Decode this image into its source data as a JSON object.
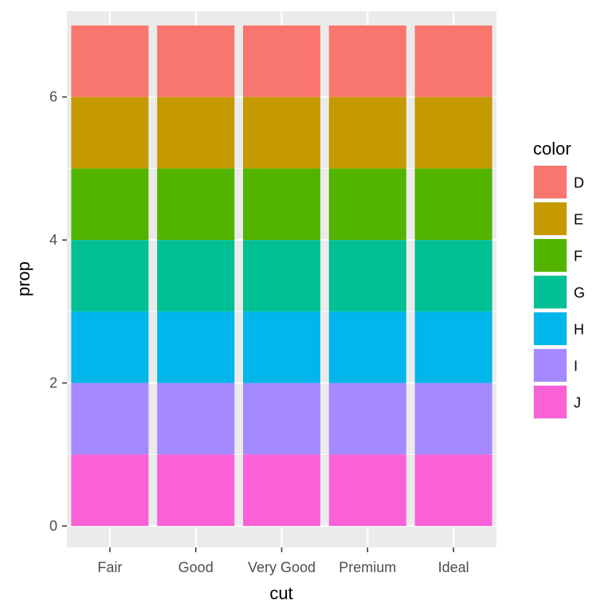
{
  "chart_data": {
    "type": "bar",
    "stacked": true,
    "xlabel": "cut",
    "ylabel": "prop",
    "categories": [
      "Fair",
      "Good",
      "Very Good",
      "Premium",
      "Ideal"
    ],
    "ylim": [
      -0.3,
      7.2
    ],
    "yticks": [
      0,
      2,
      4,
      6
    ],
    "grid": true,
    "background": "#ebebeb",
    "legend": {
      "title": "color",
      "position": "right",
      "entries": [
        "D",
        "E",
        "F",
        "G",
        "H",
        "I",
        "J"
      ]
    },
    "series": [
      {
        "name": "D",
        "color": "#f8766d",
        "values": [
          1,
          1,
          1,
          1,
          1
        ]
      },
      {
        "name": "E",
        "color": "#c49a00",
        "values": [
          1,
          1,
          1,
          1,
          1
        ]
      },
      {
        "name": "F",
        "color": "#53b400",
        "values": [
          1,
          1,
          1,
          1,
          1
        ]
      },
      {
        "name": "G",
        "color": "#00c094",
        "values": [
          1,
          1,
          1,
          1,
          1
        ]
      },
      {
        "name": "H",
        "color": "#00b6eb",
        "values": [
          1,
          1,
          1,
          1,
          1
        ]
      },
      {
        "name": "I",
        "color": "#a58aff",
        "values": [
          1,
          1,
          1,
          1,
          1
        ]
      },
      {
        "name": "J",
        "color": "#fb61d7",
        "values": [
          1,
          1,
          1,
          1,
          1
        ]
      }
    ]
  }
}
